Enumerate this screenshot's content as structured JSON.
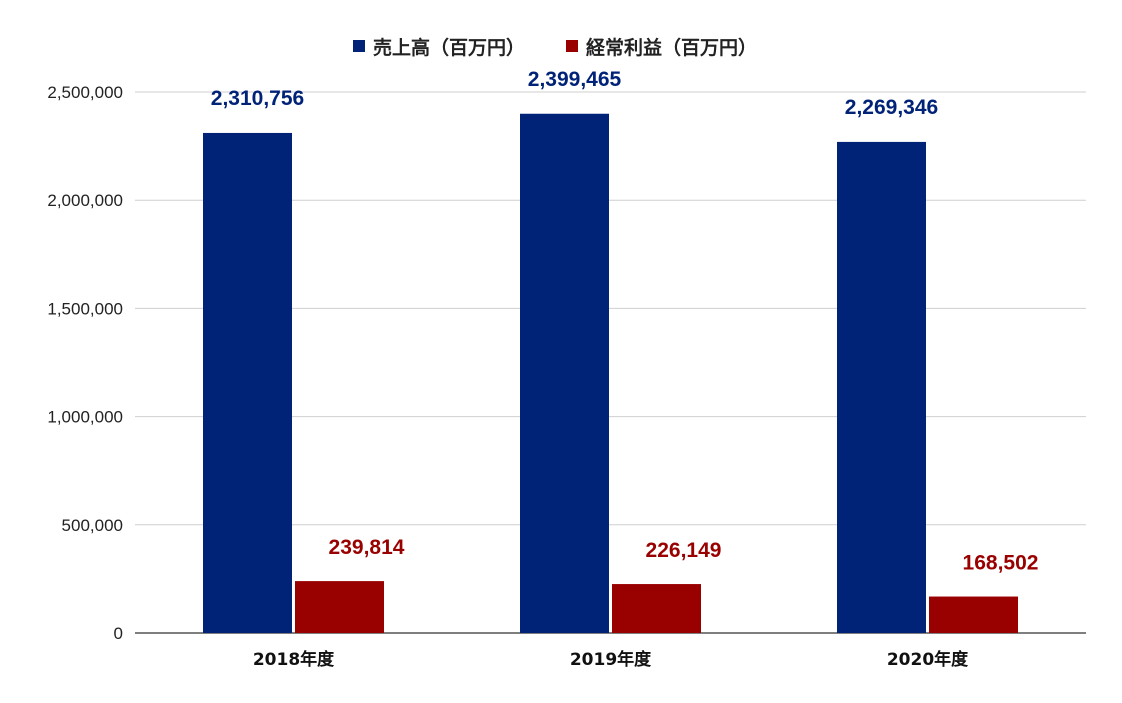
{
  "chart_data": {
    "type": "bar",
    "title": "",
    "xlabel": "",
    "ylabel": "",
    "categories": [
      "2018年度",
      "2019年度",
      "2020年度"
    ],
    "series": [
      {
        "name": "売上高（百万円）",
        "values": [
          2310756,
          2399465,
          2269346
        ],
        "labels": [
          "2,310,756",
          "2,399,465",
          "2,269,346"
        ],
        "color": "#002277"
      },
      {
        "name": "経常利益（百万円）",
        "values": [
          239814,
          226149,
          168502
        ],
        "labels": [
          "239,814",
          "226,149",
          "168,502"
        ],
        "color": "#990000"
      }
    ],
    "ylim": [
      0,
      2500000
    ],
    "yticks": [
      0,
      500000,
      1000000,
      1500000,
      2000000,
      2500000
    ],
    "ytick_labels": [
      "0",
      "500,000",
      "1,000,000",
      "1,500,000",
      "2,000,000",
      "2,500,000"
    ],
    "grid": true,
    "legend": "top-center"
  }
}
